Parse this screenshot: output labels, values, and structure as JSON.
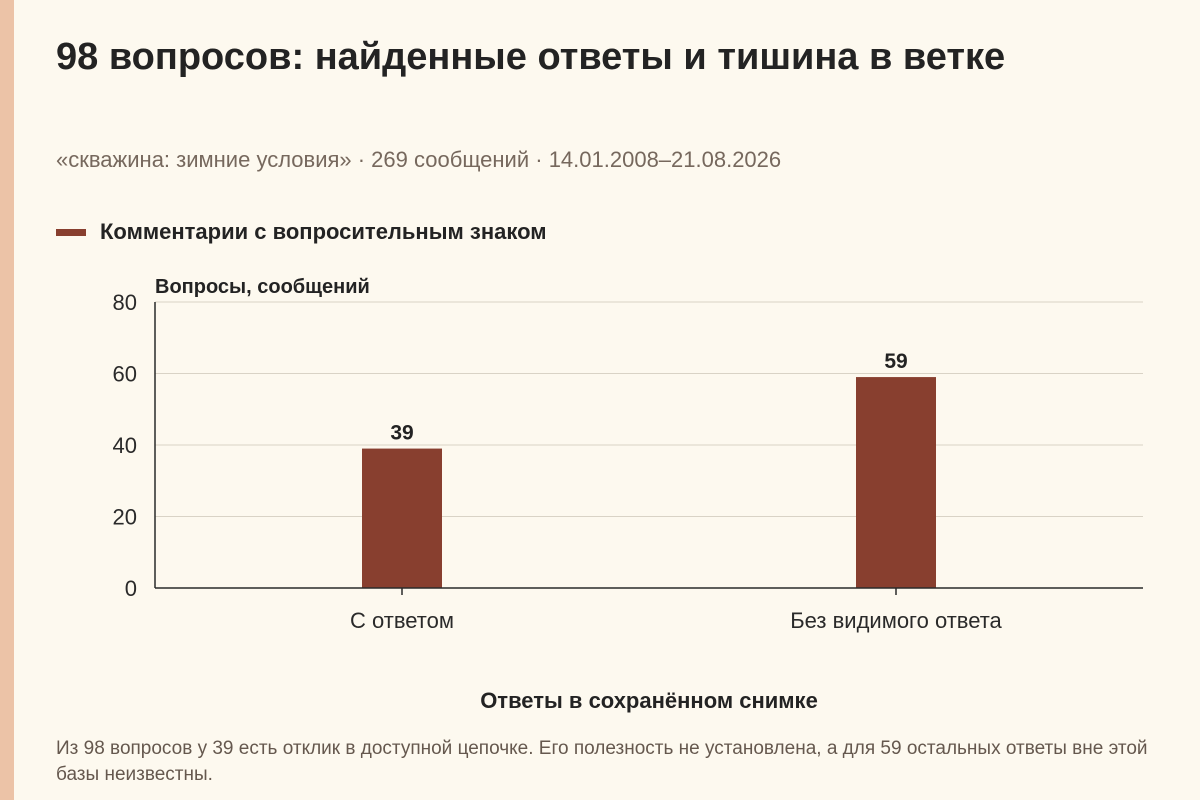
{
  "page": {
    "title": "98 вопросов: найденные ответы и тишина в ветке",
    "subtitle": "«скважина: зимние условия» · 269 сообщений · 14.01.2008–21.08.2026",
    "footnote": "Из 98 вопросов у 39 есть отклик в доступной цепочке. Его полезность не установлена, а для 59 остальных ответы вне этой базы неизвестны."
  },
  "colors": {
    "bar": "#883f2f",
    "grid": "#d9d3c6",
    "axis": "#2a2a2a",
    "background": "#fdf9ef",
    "accent_stripe": "#ecc3a7"
  },
  "chart_data": {
    "type": "bar",
    "title": "",
    "xlabel": "Ответы в сохранённом снимке",
    "ylabel": "Вопросы, сообщений",
    "categories": [
      "С ответом",
      "Без видимого ответа"
    ],
    "series": [
      {
        "name": "Комментарии с вопросительным знаком",
        "values": [
          39,
          59
        ]
      }
    ],
    "ylim": [
      0,
      80
    ],
    "yticks": [
      0,
      20,
      40,
      60,
      80
    ],
    "grid": true,
    "legend_position": "top-left",
    "data_labels": true
  }
}
